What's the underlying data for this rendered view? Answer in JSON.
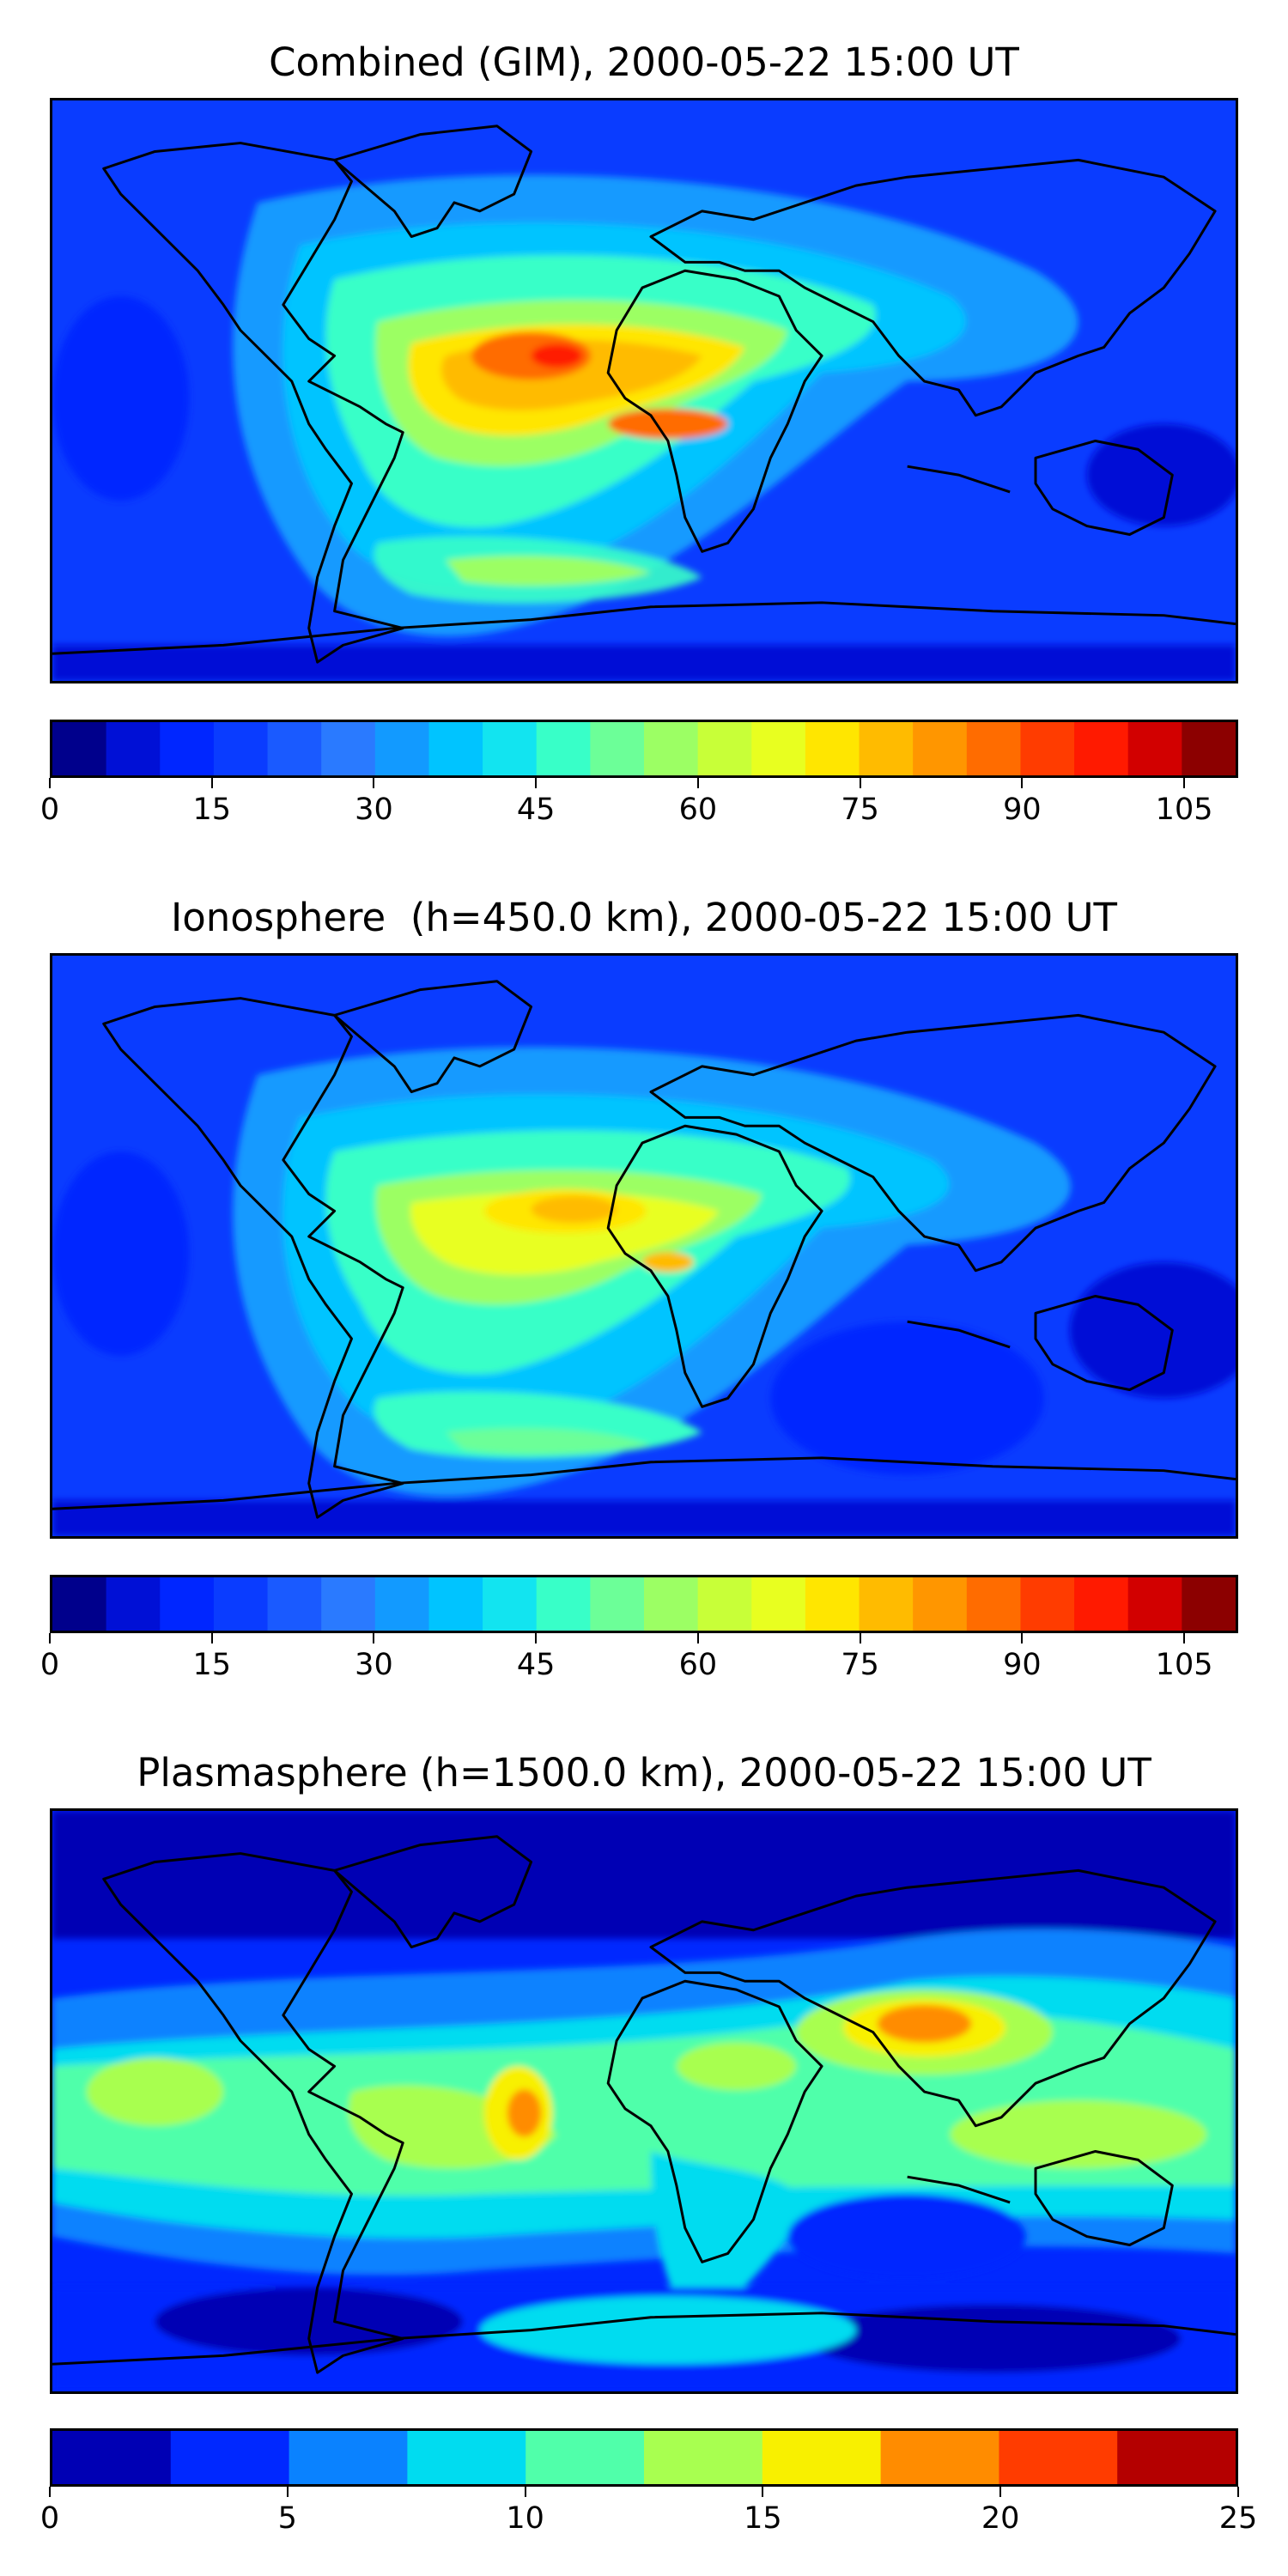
{
  "panels": [
    {
      "title": "Combined (GIM), 2000-05-22 15:00 UT",
      "background": "#0a3cff",
      "colorbar": {
        "min": 0,
        "max": 110,
        "step": 5,
        "ticks": [
          "0",
          "15",
          "30",
          "45",
          "60",
          "75",
          "90",
          "105"
        ],
        "tick_values": [
          0,
          15,
          30,
          45,
          60,
          75,
          90,
          105
        ],
        "colors": [
          "#00008c",
          "#0010d6",
          "#0026ff",
          "#0a3cff",
          "#1a5aff",
          "#2a7aff",
          "#129aff",
          "#00c4ff",
          "#12e4f0",
          "#38ffc8",
          "#6cff98",
          "#9cff64",
          "#c8ff38",
          "#e8ff20",
          "#ffe600",
          "#ffbb00",
          "#ff9600",
          "#ff6c00",
          "#ff3c00",
          "#ff1a00",
          "#d20000",
          "#8c0000"
        ]
      }
    },
    {
      "title": "Ionosphere  (h=450.0 km), 2000-05-22 15:00 UT",
      "background": "#0a3cff",
      "colorbar": {
        "min": 0,
        "max": 110,
        "step": 5,
        "ticks": [
          "0",
          "15",
          "30",
          "45",
          "60",
          "75",
          "90",
          "105"
        ],
        "tick_values": [
          0,
          15,
          30,
          45,
          60,
          75,
          90,
          105
        ],
        "colors": [
          "#00008c",
          "#0010d6",
          "#0026ff",
          "#0a3cff",
          "#1a5aff",
          "#2a7aff",
          "#129aff",
          "#00c4ff",
          "#12e4f0",
          "#38ffc8",
          "#6cff98",
          "#9cff64",
          "#c8ff38",
          "#e8ff20",
          "#ffe600",
          "#ffbb00",
          "#ff9600",
          "#ff6c00",
          "#ff3c00",
          "#ff1a00",
          "#d20000",
          "#8c0000"
        ]
      }
    },
    {
      "title": "Plasmasphere (h=1500.0 km), 2000-05-22 15:00 UT",
      "background": "#0028ff",
      "colorbar": {
        "min": 0,
        "max": 25,
        "step": 2.5,
        "ticks": [
          "0",
          "5",
          "10",
          "15",
          "20",
          "25"
        ],
        "tick_values": [
          0,
          5,
          10,
          15,
          20,
          25
        ],
        "colors": [
          "#0000b4",
          "#0028ff",
          "#0a82ff",
          "#00dcf0",
          "#50ffaa",
          "#a8ff50",
          "#f8f000",
          "#ff8c00",
          "#ff3c00",
          "#b40000"
        ]
      }
    }
  ]
}
